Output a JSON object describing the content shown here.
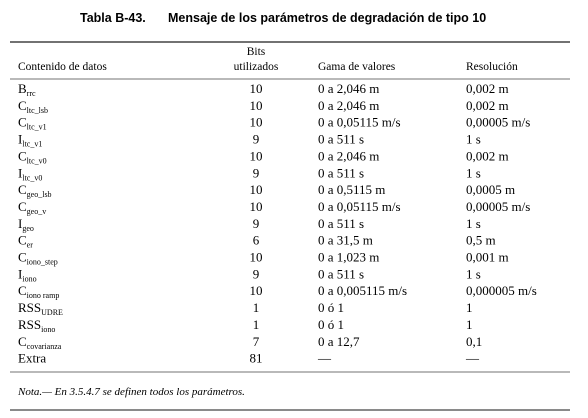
{
  "title": {
    "number": "Tabla B-43.",
    "text": "Mensaje de los parámetros de degradación de tipo 10"
  },
  "table": {
    "columns": [
      [
        "Contenido de datos"
      ],
      [
        "Bits",
        "utilizados"
      ],
      [
        "Gama de valores"
      ],
      [
        "Resolución"
      ]
    ],
    "rows": [
      [
        {
          "main": "B",
          "sub": "rrc"
        },
        10,
        "0 a 2,046 m",
        "0,002 m"
      ],
      [
        {
          "main": "C",
          "sub": "ltc_lsb"
        },
        10,
        "0 a 2,046 m",
        "0,002 m"
      ],
      [
        {
          "main": "C",
          "sub": "ltc_v1"
        },
        10,
        "0 a 0,05115 m/s",
        "0,00005 m/s"
      ],
      [
        {
          "main": "I",
          "sub": "ltc_v1"
        },
        9,
        "0 a 511 s",
        "1 s"
      ],
      [
        {
          "main": "C",
          "sub": "ltc_v0"
        },
        10,
        "0 a 2,046 m",
        "0,002 m"
      ],
      [
        {
          "main": "I",
          "sub": "ltc_v0"
        },
        9,
        "0 a 511 s",
        "1 s"
      ],
      [
        {
          "main": "C",
          "sub": "geo_lsb"
        },
        10,
        "0 a 0,5115 m",
        "0,0005 m"
      ],
      [
        {
          "main": "C",
          "sub": "geo_v"
        },
        10,
        "0 a 0,05115 m/s",
        "0,00005 m/s"
      ],
      [
        {
          "main": "I",
          "sub": "geo"
        },
        9,
        "0 a 511 s",
        "1 s"
      ],
      [
        {
          "main": "C",
          "sub": "er"
        },
        6,
        "0 a 31,5 m",
        "0,5 m"
      ],
      [
        {
          "main": "C",
          "sub": "iono_step"
        },
        10,
        "0 a 1,023 m",
        "0,001 m"
      ],
      [
        {
          "main": "I",
          "sub": "iono"
        },
        9,
        "0 a 511 s",
        "1 s"
      ],
      [
        {
          "main": "C",
          "sub": "iono ramp"
        },
        10,
        "0 a 0,005115 m/s",
        "0,000005 m/s"
      ],
      [
        {
          "main": "RSS",
          "sub": "UDRE"
        },
        1,
        "0 ó 1",
        "1"
      ],
      [
        {
          "main": "RSS",
          "sub": "iono"
        },
        1,
        "0 ó 1",
        "1"
      ],
      [
        {
          "main": "C",
          "sub": "covarianza"
        },
        7,
        "0 a 12,7",
        "0,1"
      ],
      [
        {
          "main": "Extra"
        },
        81,
        "—",
        "—"
      ]
    ]
  },
  "note": "Nota.— En 3.5.4.7 se definen todos los parámetros."
}
